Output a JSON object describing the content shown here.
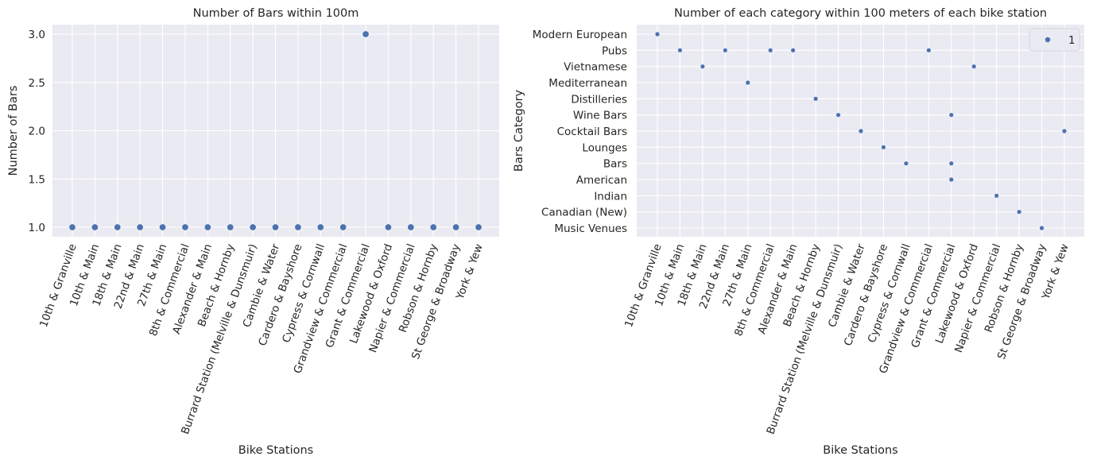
{
  "chart_data": [
    {
      "type": "scatter",
      "title": "Number of Bars within 100m",
      "xlabel": "Bike Stations",
      "ylabel": "Number of Bars",
      "categories": [
        "10th & Granville",
        "10th & Main",
        "18th & Main",
        "22nd & Main",
        "27th & Main",
        "8th & Commercial",
        "Alexander & Main",
        "Beach & Hornby",
        "Burrard Station (Melville & Dunsmuir)",
        "Cambie & Water",
        "Cardero & Bayshore",
        "Cypress & Cornwall",
        "Grandview & Commercial",
        "Grant & Commercial",
        "Lakewood & Oxford",
        "Napier & Commercial",
        "Robson & Hornby",
        "St George & Broadway",
        "York & Yew"
      ],
      "values": [
        1,
        1,
        1,
        1,
        1,
        1,
        1,
        1,
        1,
        1,
        1,
        1,
        1,
        3,
        1,
        1,
        1,
        1,
        1
      ],
      "yticks": [
        "1.0",
        "1.5",
        "2.0",
        "2.5",
        "3.0"
      ],
      "ylim": [
        0.9,
        3.1
      ],
      "grid": true,
      "color": "#4c72b0",
      "background": "#eaeaf2"
    },
    {
      "type": "scatter",
      "title": "Number of each category within 100 meters of each bike station",
      "xlabel": "Bike Stations",
      "ylabel": "Bars Category",
      "categories": [
        "10th & Granville",
        "10th & Main",
        "18th & Main",
        "22nd & Main",
        "27th & Main",
        "8th & Commercial",
        "Alexander & Main",
        "Beach & Hornby",
        "Burrard Station (Melville & Dunsmuir)",
        "Cambie & Water",
        "Cardero & Bayshore",
        "Cypress & Cornwall",
        "Grandview & Commercial",
        "Grant & Commercial",
        "Lakewood & Oxford",
        "Napier & Commercial",
        "Robson & Hornby",
        "St George & Broadway",
        "York & Yew"
      ],
      "y_categories": [
        "Modern European",
        "Pubs",
        "Vietnamese",
        "Mediterranean",
        "Distilleries",
        "Wine Bars",
        "Cocktail Bars",
        "Lounges",
        "Bars",
        "American",
        "Indian",
        "Canadian (New)",
        "Music Venues"
      ],
      "points": [
        {
          "x": "10th & Granville",
          "y": "Modern European"
        },
        {
          "x": "10th & Main",
          "y": "Pubs"
        },
        {
          "x": "18th & Main",
          "y": "Vietnamese"
        },
        {
          "x": "22nd & Main",
          "y": "Pubs"
        },
        {
          "x": "27th & Main",
          "y": "Mediterranean"
        },
        {
          "x": "8th & Commercial",
          "y": "Pubs"
        },
        {
          "x": "Alexander & Main",
          "y": "Pubs"
        },
        {
          "x": "Beach & Hornby",
          "y": "Distilleries"
        },
        {
          "x": "Burrard Station (Melville & Dunsmuir)",
          "y": "Wine Bars"
        },
        {
          "x": "Cambie & Water",
          "y": "Cocktail Bars"
        },
        {
          "x": "Cardero & Bayshore",
          "y": "Lounges"
        },
        {
          "x": "Cypress & Cornwall",
          "y": "Bars"
        },
        {
          "x": "Grandview & Commercial",
          "y": "Pubs"
        },
        {
          "x": "Grant & Commercial",
          "y": "Wine Bars"
        },
        {
          "x": "Grant & Commercial",
          "y": "Bars"
        },
        {
          "x": "Grant & Commercial",
          "y": "American"
        },
        {
          "x": "Lakewood & Oxford",
          "y": "Vietnamese"
        },
        {
          "x": "Napier & Commercial",
          "y": "Indian"
        },
        {
          "x": "Robson & Hornby",
          "y": "Canadian (New)"
        },
        {
          "x": "St George & Broadway",
          "y": "Music Venues"
        },
        {
          "x": "York & Yew",
          "y": "Cocktail Bars"
        }
      ],
      "legend": {
        "entries": [
          "1"
        ],
        "placement": "top-right"
      },
      "grid": true,
      "color": "#4c72b0",
      "background": "#eaeaf2"
    }
  ]
}
